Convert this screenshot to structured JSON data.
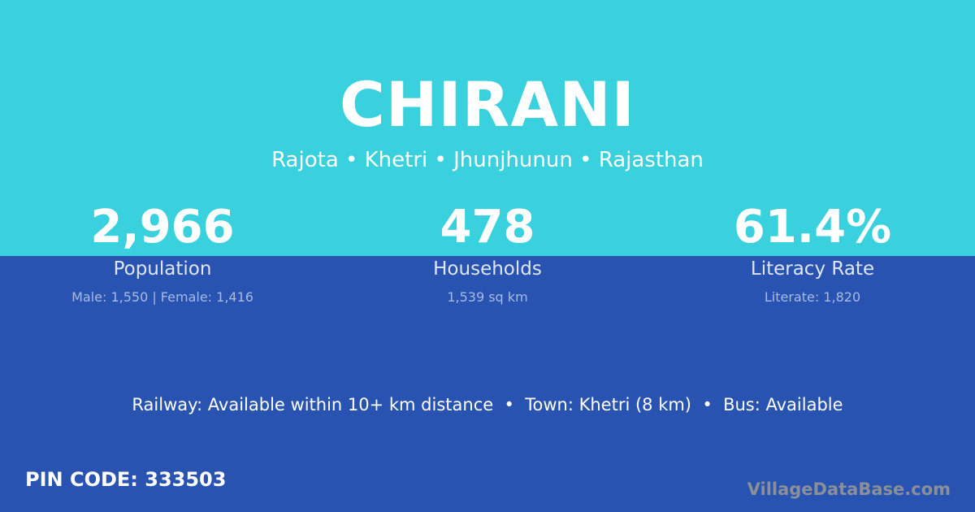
{
  "colors": {
    "top_band": "#38d1dd",
    "bottom_band": "#2953b1"
  },
  "title": "CHIRANI",
  "location": "Rajota • Khetri • Jhunjhunun • Rajasthan",
  "stats": [
    {
      "value": "2,966",
      "label": "Population",
      "detail": "Male: 1,550 | Female: 1,416"
    },
    {
      "value": "478",
      "label": "Households",
      "detail": "1,539 sq km"
    },
    {
      "value": "61.4%",
      "label": "Literacy Rate",
      "detail": "Literate: 1,820"
    }
  ],
  "access": "Railway: Available within 10+ km distance  •  Town: Khetri (8 km)  •  Bus: Available",
  "pin": "PIN CODE: 333503",
  "brand": "VillageDataBase.com"
}
